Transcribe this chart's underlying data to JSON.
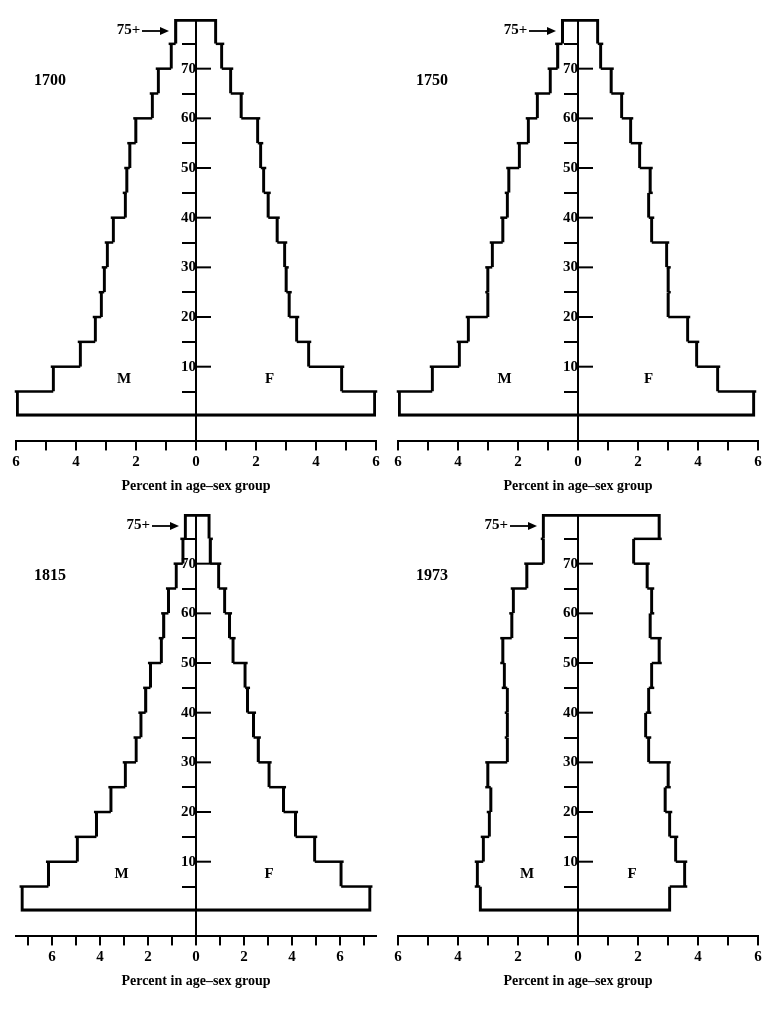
{
  "chart_data": [
    {
      "type": "bar",
      "orientation": "horizontal",
      "stacked": true,
      "title": "1700",
      "xlabel": "Percent in age–sex group",
      "x": [
        2.5,
        7.5,
        12.5,
        17.5,
        22.5,
        27.5,
        32.5,
        37.5,
        42.5,
        47.5,
        52.5,
        57.5,
        62.5,
        67.5,
        72.5,
        77.5
      ],
      "series": [
        {
          "name": "M",
          "color": "#000000",
          "values": [
            -6.0,
            -4.8,
            -3.9,
            -3.4,
            -3.2,
            -3.1,
            -3.0,
            -2.8,
            -2.4,
            -2.35,
            -2.25,
            -2.05,
            -1.5,
            -1.3,
            -0.87,
            -0.72
          ]
        },
        {
          "name": "F",
          "color": "#000000",
          "values": [
            6.0,
            4.9,
            3.8,
            3.4,
            3.15,
            3.05,
            3.0,
            2.75,
            2.45,
            2.3,
            2.2,
            2.1,
            1.55,
            1.2,
            0.9,
            0.7
          ]
        }
      ],
      "xlim": [
        -6,
        6
      ],
      "xticks": [
        {
          "value": -6,
          "label": "6"
        },
        {
          "value": -5,
          "label": null
        },
        {
          "value": -4,
          "label": "4"
        },
        {
          "value": -3,
          "label": null
        },
        {
          "value": -2,
          "label": "2"
        },
        {
          "value": -1,
          "label": null
        },
        0,
        {
          "value": 1,
          "label": null
        },
        2,
        {
          "value": 3,
          "label": null
        },
        4,
        {
          "value": 5,
          "label": null
        },
        6
      ],
      "ylim": [
        -5,
        80
      ],
      "yticks": [
        10,
        20,
        30,
        40,
        50,
        60,
        70
      ],
      "annotations": [
        "75+"
      ]
    },
    {
      "type": "bar",
      "orientation": "horizontal",
      "stacked": true,
      "title": "1750",
      "xlabel": "Percent in age–sex group",
      "x": [
        2.5,
        7.5,
        12.5,
        17.5,
        22.5,
        27.5,
        32.5,
        37.5,
        42.5,
        47.5,
        52.5,
        57.5,
        62.5,
        67.5,
        72.5,
        77.5
      ],
      "series": [
        {
          "name": "M",
          "color": "#000000",
          "values": [
            -6.0,
            -4.9,
            -4.0,
            -3.7,
            -3.05,
            -3.05,
            -2.9,
            -2.55,
            -2.4,
            -2.35,
            -2.0,
            -1.7,
            -1.4,
            -0.97,
            -0.72,
            -0.56
          ]
        },
        {
          "name": "F",
          "color": "#000000",
          "values": [
            5.9,
            4.7,
            4.0,
            3.7,
            3.05,
            3.05,
            3.0,
            2.5,
            2.4,
            2.45,
            2.1,
            1.8,
            1.5,
            1.15,
            0.8,
            0.7
          ]
        }
      ],
      "xlim": [
        -6,
        6
      ],
      "xticks": [
        {
          "value": -6,
          "label": "6"
        },
        {
          "value": -5,
          "label": null
        },
        {
          "value": -4,
          "label": "4"
        },
        {
          "value": -3,
          "label": null
        },
        {
          "value": -2,
          "label": "2"
        },
        {
          "value": -1,
          "label": null
        },
        0,
        {
          "value": 1,
          "label": null
        },
        2,
        {
          "value": 3,
          "label": null
        },
        4,
        {
          "value": 5,
          "label": null
        },
        6
      ],
      "ylim": [
        -5,
        80
      ],
      "yticks": [
        10,
        20,
        30,
        40,
        50,
        60,
        70
      ],
      "annotations": [
        "75+"
      ]
    },
    {
      "type": "bar",
      "orientation": "horizontal",
      "stacked": true,
      "title": "1815",
      "xlabel": "Percent in age–sex group",
      "x": [
        2.5,
        7.5,
        12.5,
        17.5,
        22.5,
        27.5,
        32.5,
        37.5,
        42.5,
        47.5,
        52.5,
        57.5,
        62.5,
        67.5,
        72.5,
        77.5
      ],
      "series": [
        {
          "name": "M",
          "color": "#000000",
          "values": [
            -7.3,
            -6.2,
            -5.0,
            -4.2,
            -3.6,
            -3.0,
            -2.55,
            -2.35,
            -2.15,
            -1.95,
            -1.5,
            -1.4,
            -1.2,
            -0.88,
            -0.6,
            -0.5
          ]
        },
        {
          "name": "F",
          "color": "#000000",
          "values": [
            7.3,
            6.1,
            5.0,
            4.2,
            3.7,
            3.1,
            2.65,
            2.45,
            2.2,
            2.1,
            1.6,
            1.45,
            1.25,
            1.0,
            0.65,
            0.6
          ]
        }
      ],
      "xlim": [
        -7.5,
        7.5
      ],
      "xticks": [
        {
          "value": -7,
          "label": null
        },
        {
          "value": -6,
          "label": "6"
        },
        {
          "value": -5,
          "label": null
        },
        {
          "value": -4,
          "label": "4"
        },
        {
          "value": -3,
          "label": null
        },
        {
          "value": -2,
          "label": "2"
        },
        {
          "value": -1,
          "label": null
        },
        0,
        {
          "value": 1,
          "label": null
        },
        2,
        {
          "value": 3,
          "label": null
        },
        4,
        {
          "value": 5,
          "label": null
        },
        6,
        {
          "value": 7,
          "label": null
        }
      ],
      "ylim": [
        -5,
        80
      ],
      "yticks": [
        10,
        20,
        30,
        40,
        50,
        60,
        70
      ],
      "annotations": [
        "75+"
      ]
    },
    {
      "type": "bar",
      "orientation": "horizontal",
      "stacked": true,
      "title": "1973",
      "xlabel": "Percent in age–sex group",
      "x": [
        2.5,
        7.5,
        12.5,
        17.5,
        22.5,
        27.5,
        32.5,
        37.5,
        42.5,
        47.5,
        52.5,
        57.5,
        62.5,
        67.5,
        72.5,
        77.5
      ],
      "series": [
        {
          "name": "M",
          "color": "#000000",
          "values": [
            -3.3,
            -3.4,
            -3.2,
            -3.0,
            -2.95,
            -3.05,
            -2.4,
            -2.4,
            -2.4,
            -2.5,
            -2.55,
            -2.25,
            -2.2,
            -1.75,
            -1.2,
            -1.2
          ]
        },
        {
          "name": "F",
          "color": "#000000",
          "values": [
            3.1,
            3.6,
            3.3,
            3.1,
            2.95,
            3.05,
            2.4,
            2.3,
            2.4,
            2.5,
            2.75,
            2.45,
            2.5,
            2.35,
            1.9,
            2.75
          ]
        }
      ],
      "xlim": [
        -6,
        6
      ],
      "xticks": [
        {
          "value": -6,
          "label": "6"
        },
        {
          "value": -5,
          "label": null
        },
        {
          "value": -4,
          "label": "4"
        },
        {
          "value": -3,
          "label": null
        },
        {
          "value": -2,
          "label": "2"
        },
        {
          "value": -1,
          "label": null
        },
        0,
        {
          "value": 1,
          "label": null
        },
        2,
        {
          "value": 3,
          "label": null
        },
        4,
        {
          "value": 5,
          "label": null
        },
        6
      ],
      "ylim": [
        -5,
        80
      ],
      "yticks": [
        10,
        20,
        30,
        40,
        50,
        60,
        70
      ],
      "annotations": [
        "75+"
      ]
    }
  ]
}
